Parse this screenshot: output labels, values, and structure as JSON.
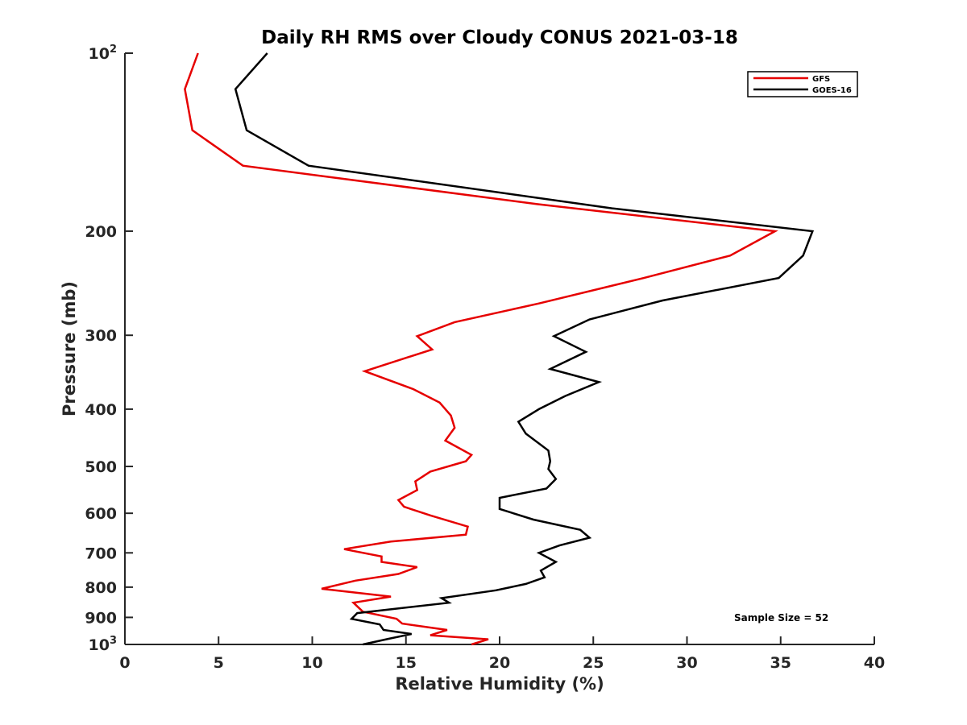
{
  "chart_data": {
    "type": "line",
    "title": "Daily RH RMS over Cloudy CONUS 2021-03-18",
    "xlabel": "Relative Humidity (%)",
    "ylabel": "Pressure (mb)",
    "xlim": [
      0,
      40
    ],
    "ylim": [
      1000,
      100
    ],
    "yscale": "log",
    "y_reversed": true,
    "grid": false,
    "legend_position": "top-right",
    "x_ticks": [
      "0",
      "5",
      "10",
      "15",
      "20",
      "25",
      "30",
      "35",
      "40"
    ],
    "y_ticks": [
      {
        "value": 100,
        "base": "10",
        "exp": "2"
      },
      {
        "value": 200,
        "label": "200"
      },
      {
        "value": 300,
        "label": "300"
      },
      {
        "value": 400,
        "label": "400"
      },
      {
        "value": 500,
        "label": "500"
      },
      {
        "value": 600,
        "label": "600"
      },
      {
        "value": 700,
        "label": "700"
      },
      {
        "value": 800,
        "label": "800"
      },
      {
        "value": 900,
        "label": "900"
      },
      {
        "value": 1000,
        "base": "10",
        "exp": "3"
      }
    ],
    "annotation": "Sample Size = 52",
    "series": [
      {
        "name": "GFS",
        "color": "#e60000",
        "points": [
          [
            3.9,
            100
          ],
          [
            3.2,
            115
          ],
          [
            3.6,
            135
          ],
          [
            6.3,
            155
          ],
          [
            22,
            180
          ],
          [
            34.7,
            200
          ],
          [
            32.3,
            220
          ],
          [
            27.7,
            240
          ],
          [
            22.1,
            265
          ],
          [
            17.6,
            285
          ],
          [
            15.6,
            301
          ],
          [
            16.4,
            317
          ],
          [
            12.8,
            345
          ],
          [
            15.4,
            370
          ],
          [
            16.8,
            390
          ],
          [
            17.4,
            410
          ],
          [
            17.6,
            430
          ],
          [
            17.1,
            452
          ],
          [
            18.5,
            478
          ],
          [
            18.2,
            490
          ],
          [
            16.3,
            510
          ],
          [
            15.5,
            530
          ],
          [
            15.6,
            548
          ],
          [
            14.6,
            570
          ],
          [
            14.9,
            585
          ],
          [
            16.3,
            605
          ],
          [
            18.3,
            632
          ],
          [
            18.2,
            652
          ],
          [
            14.2,
            670
          ],
          [
            11.7,
            690
          ],
          [
            13.7,
            710
          ],
          [
            13.7,
            725
          ],
          [
            15.6,
            740
          ],
          [
            14.6,
            760
          ],
          [
            12.3,
            780
          ],
          [
            10.5,
            805
          ],
          [
            14.2,
            830
          ],
          [
            12.2,
            850
          ],
          [
            12.7,
            880
          ],
          [
            14.5,
            905
          ],
          [
            14.8,
            922
          ],
          [
            17.2,
            945
          ],
          [
            16.3,
            965
          ],
          [
            19.4,
            980
          ],
          [
            18.5,
            1000
          ]
        ]
      },
      {
        "name": "GOES-16",
        "color": "#000000",
        "points": [
          [
            7.6,
            100
          ],
          [
            5.9,
            115
          ],
          [
            6.5,
            135
          ],
          [
            9.8,
            155
          ],
          [
            26,
            183
          ],
          [
            36.7,
            200
          ],
          [
            36.2,
            220
          ],
          [
            34.9,
            240
          ],
          [
            28.7,
            262
          ],
          [
            24.8,
            282
          ],
          [
            22.9,
            301
          ],
          [
            24.6,
            320
          ],
          [
            22.7,
            342
          ],
          [
            25.3,
            360
          ],
          [
            23.5,
            380
          ],
          [
            22.1,
            400
          ],
          [
            21,
            420
          ],
          [
            21.4,
            440
          ],
          [
            22.6,
            470
          ],
          [
            22.7,
            490
          ],
          [
            22.6,
            505
          ],
          [
            23,
            525
          ],
          [
            22.5,
            545
          ],
          [
            20,
            565
          ],
          [
            20,
            590
          ],
          [
            21.8,
            615
          ],
          [
            24.3,
            640
          ],
          [
            24.8,
            660
          ],
          [
            23.2,
            680
          ],
          [
            22.1,
            700
          ],
          [
            23,
            725
          ],
          [
            22.2,
            750
          ],
          [
            22.4,
            770
          ],
          [
            21.4,
            790
          ],
          [
            19.8,
            810
          ],
          [
            16.9,
            835
          ],
          [
            17.3,
            850
          ],
          [
            12.4,
            885
          ],
          [
            12.1,
            905
          ],
          [
            13.6,
            925
          ],
          [
            13.8,
            945
          ],
          [
            15.3,
            960
          ],
          [
            14.1,
            978
          ],
          [
            12.7,
            1000
          ]
        ]
      }
    ]
  }
}
